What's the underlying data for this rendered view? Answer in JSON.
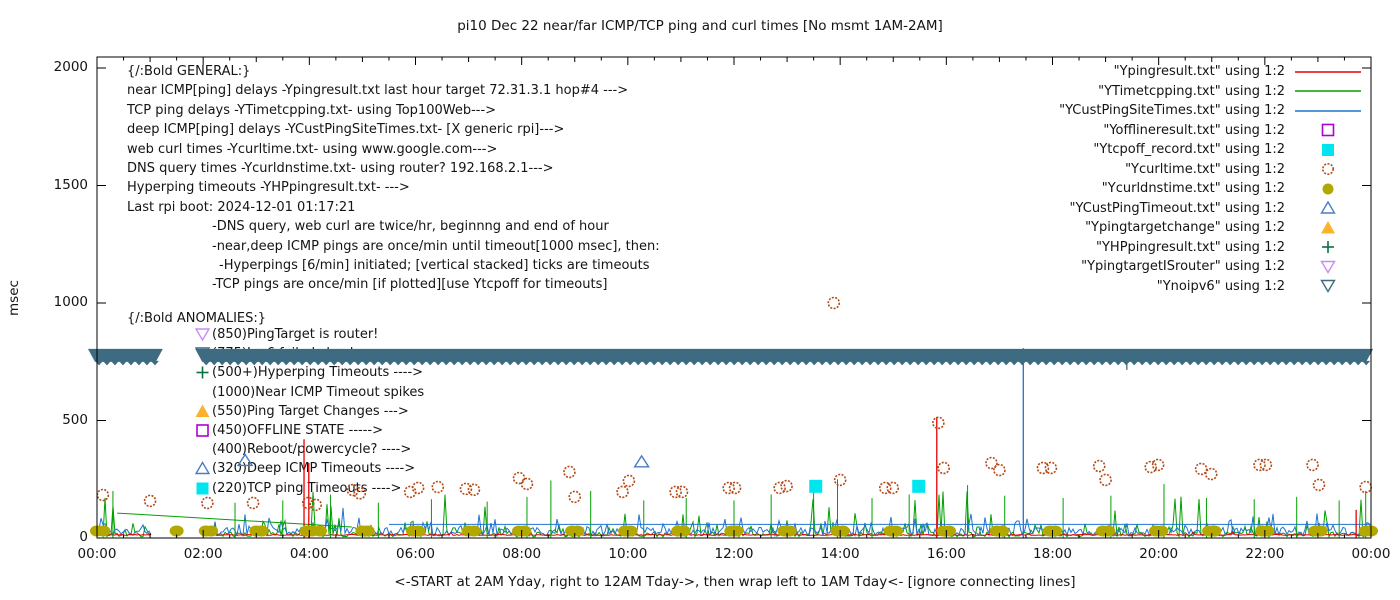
{
  "title": "pi10 Dec 22  near/far ICMP/TCP ping and curl times [No msmt 1AM-2AM]",
  "y_axis": {
    "label": "msec",
    "ticks": [
      0,
      500,
      1000,
      1500,
      2000
    ]
  },
  "x_axis": {
    "tick_labels": [
      "00:00",
      "02:00",
      "04:00",
      "06:00",
      "08:00",
      "10:00",
      "12:00",
      "14:00",
      "16:00",
      "18:00",
      "20:00",
      "22:00",
      "00:00"
    ],
    "caption": "<-START at 2AM Yday, right to 12AM Tday->, then wrap left to 1AM Tday<- [ignore connecting lines]"
  },
  "colors": {
    "red": "#e60000",
    "green": "#00a000",
    "blue": "#1f74d2",
    "magenta": "#b000d0",
    "cyan": "#00e5ee",
    "curl_circle": "#b44a17",
    "olive": "#b2a800",
    "tri_up_open": "#4a7ec2",
    "orange": "#fcb32c",
    "plus_green": "#0e6e44",
    "violet": "#c88bf2",
    "steel": "#3c6b82",
    "axis": "#000000"
  },
  "legend": [
    {
      "label": "\"Ypingresult.txt\" using 1:2",
      "sample": "line",
      "color": "#e60000"
    },
    {
      "label": "\"YTimetcpping.txt\" using 1:2",
      "sample": "line",
      "color": "#00a000"
    },
    {
      "label": "\"YCustPingSiteTimes.txt\" using 1:2",
      "sample": "line",
      "color": "#1f74d2"
    },
    {
      "label": "\"Yofflineresult.txt\" using 1:2",
      "sample": "square-open",
      "color": "#b000d0"
    },
    {
      "label": "\"Ytcpoff_record.txt\" using 1:2",
      "sample": "square-fill",
      "color": "#00e5ee"
    },
    {
      "label": "\"Ycurltime.txt\" using 1:2",
      "sample": "circle-open",
      "color": "#b44a17"
    },
    {
      "label": "\"Ycurldnstime.txt\" using 1:2",
      "sample": "circle-fill",
      "color": "#b2a800"
    },
    {
      "label": "\"YCustPingTimeout.txt\" using 1:2",
      "sample": "tri-up-open",
      "color": "#4a7ec2"
    },
    {
      "label": "\"Ypingtargetchange\" using 1:2",
      "sample": "tri-up-fill",
      "color": "#fcb32c"
    },
    {
      "label": "\"YHPpingresult.txt\" using 1:2",
      "sample": "plus",
      "color": "#0e6e44"
    },
    {
      "label": "\"YpingtargetISrouter\" using 1:2",
      "sample": "tri-down-open",
      "color": "#c88bf2"
    },
    {
      "label": "\"Ynoipv6\" using 1:2",
      "sample": "tri-down-open",
      "color": "#3c6b82"
    }
  ],
  "info_block": [
    {
      "text": "{/:Bold GENERAL:}",
      "x": 127
    },
    {
      "text": "near ICMP[ping] delays -Ypingresult.txt last hour target 72.31.3.1 hop#4 --->",
      "x": 127
    },
    {
      "text": "TCP ping delays -YTimetcpping.txt- using Top100Web--->",
      "x": 127
    },
    {
      "text": "deep ICMP[ping] delays -YCustPingSiteTimes.txt- [X generic rpi]--->",
      "x": 127
    },
    {
      "text": "web curl times -Ycurltime.txt- using www.google.com--->",
      "x": 127
    },
    {
      "text": "DNS query times -Ycurldnstime.txt- using router? 192.168.2.1--->",
      "x": 127
    },
    {
      "text": "Hyperping timeouts -YHPpingresult.txt- --->",
      "x": 127
    },
    {
      "text": "Last rpi boot: 2024-12-01 01:17:21",
      "x": 127
    },
    {
      "text": "-DNS query, web curl are twice/hr, beginnng and end of hour",
      "x": 212
    },
    {
      "text": "-near,deep ICMP pings are once/min until timeout[1000 msec], then:",
      "x": 212
    },
    {
      "text": "-Hyperpings [6/min] initiated; [vertical stacked] ticks are timeouts",
      "x": 219
    },
    {
      "text": "-TCP pings are once/min [if plotted][use Ytcpoff for timeouts]",
      "x": 212
    }
  ],
  "anomalies": {
    "header": "{/:Bold ANOMALIES:}",
    "lines": [
      {
        "marker": "tri-down-open",
        "color": "#c88bf2",
        "text": "(850)PingTarget is router!"
      },
      {
        "marker": "tri-down-open",
        "color": "#3c6b82",
        "text": "(775)Ipv6 failed check --->"
      },
      {
        "marker": "plus",
        "color": "#0e6e44",
        "text": "(500+)Hyperping Timeouts ---->"
      },
      {
        "marker": "none",
        "color": "#141414",
        "text": "(1000)Near ICMP Timeout spikes"
      },
      {
        "marker": "tri-up-fill",
        "color": "#fcb32c",
        "text": "(550)Ping Target Changes --->"
      },
      {
        "marker": "square-open",
        "color": "#b000d0",
        "text": "(450)OFFLINE STATE ----->"
      },
      {
        "marker": "none",
        "color": "#141414",
        "text": "(400)Reboot/powercycle? ---->"
      },
      {
        "marker": "tri-up-open",
        "color": "#4a7ec2",
        "text": "(320)Deep ICMP Timeouts ---->"
      },
      {
        "marker": "square-fill",
        "color": "#00e5ee",
        "text": "(220)TCP ping Timeouts ---->"
      }
    ]
  },
  "chart_data": {
    "type": "line",
    "title": "pi10 Dec 22  near/far ICMP/TCP ping and curl times [No msmt 1AM-2AM]",
    "xlabel": "<-START at 2AM Yday, right to 12AM Tday->, then wrap left to 1AM Tday<- [ignore connecting lines]",
    "ylabel": "msec",
    "xlim_hours": [
      0,
      24
    ],
    "ylim": [
      0,
      2045
    ],
    "grid": false,
    "legend_position": "top-right-inside",
    "no_measurement_gap_hours": [
      1.03,
      2.17
    ],
    "series": [
      {
        "name": "Ypingresult.txt",
        "style": "line",
        "color": "#e60000",
        "baseline_msec": 13,
        "spikes": [
          [
            3.9,
            420
          ],
          [
            3.99,
            320
          ],
          [
            15.82,
            515
          ],
          [
            23.72,
            120
          ]
        ]
      },
      {
        "name": "YTimetcpping.txt",
        "style": "line",
        "color": "#00a000",
        "noise_range_msec": [
          5,
          260
        ],
        "spikes": [
          [
            0.3,
            200
          ],
          [
            2.6,
            150
          ],
          [
            3.5,
            160
          ],
          [
            4.4,
            185
          ],
          [
            5.3,
            150
          ],
          [
            6.3,
            165
          ],
          [
            7.35,
            155
          ],
          [
            8.1,
            175
          ],
          [
            8.55,
            245
          ],
          [
            9.3,
            200
          ],
          [
            10.3,
            160
          ],
          [
            11.1,
            170
          ],
          [
            12.0,
            160
          ],
          [
            12.7,
            185
          ],
          [
            13.5,
            205
          ],
          [
            13.95,
            250
          ],
          [
            14.6,
            170
          ],
          [
            15.3,
            185
          ],
          [
            16.4,
            225
          ],
          [
            17.1,
            180
          ],
          [
            18.2,
            170
          ],
          [
            19.1,
            180
          ],
          [
            20.1,
            230
          ],
          [
            20.9,
            170
          ],
          [
            21.8,
            165
          ],
          [
            22.6,
            175
          ],
          [
            23.4,
            160
          ],
          [
            23.9,
            200
          ]
        ],
        "connecting_line": [
          [
            0.38,
            106
          ],
          [
            4.8,
            47
          ]
        ]
      },
      {
        "name": "YCustPingSiteTimes.txt",
        "style": "line",
        "color": "#1f74d2",
        "noise_range_msec": [
          8,
          135
        ],
        "flat_segment": {
          "from_hour": 5.5,
          "to_hour": 24,
          "msec": 58
        },
        "spikes": [
          [
            17.45,
            808
          ]
        ]
      },
      {
        "name": "Yofflineresult.txt",
        "style": "square-open",
        "color": "#b000d0",
        "points": []
      },
      {
        "name": "Ytcpoff_record.txt",
        "style": "square-fill",
        "color": "#00e5ee",
        "points": [
          [
            13.54,
            220
          ],
          [
            15.48,
            220
          ]
        ]
      },
      {
        "name": "Ycurltime.txt",
        "style": "circle-open",
        "color": "#b44a17",
        "points": [
          [
            0.11,
            183
          ],
          [
            1.0,
            158
          ],
          [
            2.08,
            149
          ],
          [
            2.94,
            149
          ],
          [
            3.98,
            149
          ],
          [
            4.12,
            141
          ],
          [
            4.82,
            204
          ],
          [
            4.95,
            190
          ],
          [
            5.9,
            196
          ],
          [
            6.05,
            213
          ],
          [
            6.42,
            217
          ],
          [
            6.95,
            209
          ],
          [
            7.1,
            205
          ],
          [
            7.95,
            255
          ],
          [
            8.1,
            230
          ],
          [
            8.9,
            281
          ],
          [
            9.0,
            175
          ],
          [
            9.9,
            196
          ],
          [
            10.02,
            243
          ],
          [
            10.9,
            196
          ],
          [
            11.02,
            196
          ],
          [
            11.9,
            213
          ],
          [
            12.02,
            213
          ],
          [
            12.86,
            213
          ],
          [
            12.99,
            221
          ],
          [
            13.88,
            1000
          ],
          [
            14.0,
            247
          ],
          [
            14.85,
            213
          ],
          [
            14.99,
            213
          ],
          [
            15.85,
            490
          ],
          [
            15.95,
            298
          ],
          [
            16.85,
            319
          ],
          [
            17.0,
            289
          ],
          [
            17.82,
            298
          ],
          [
            17.97,
            298
          ],
          [
            18.88,
            306
          ],
          [
            19.0,
            247
          ],
          [
            19.85,
            302
          ],
          [
            19.99,
            311
          ],
          [
            20.8,
            294
          ],
          [
            20.99,
            272
          ],
          [
            21.9,
            311
          ],
          [
            22.02,
            311
          ],
          [
            22.9,
            311
          ],
          [
            23.02,
            226
          ],
          [
            23.9,
            217
          ]
        ]
      },
      {
        "name": "Ycurldnstime.txt",
        "style": "circle-fill",
        "color": "#b2a800",
        "msec": 30,
        "hours": [
          0.0,
          0.12,
          1.5,
          2.05,
          2.15,
          3.0,
          3.1,
          3.95,
          4.05,
          4.2,
          5.0,
          5.1,
          5.95,
          6.05,
          7.0,
          7.1,
          7.95,
          8.05,
          8.95,
          9.05,
          9.95,
          10.05,
          10.95,
          11.05,
          11.95,
          12.05,
          12.95,
          13.05,
          13.95,
          14.05,
          14.95,
          15.05,
          15.95,
          16.05,
          16.95,
          17.05,
          17.95,
          18.05,
          18.95,
          19.05,
          19.95,
          20.05,
          20.95,
          21.05,
          21.95,
          22.05,
          22.95,
          23.05,
          23.9,
          24.0
        ]
      },
      {
        "name": "YCustPingTimeout.txt",
        "style": "tri-up-open",
        "color": "#4a7ec2",
        "points": [
          [
            2.79,
            330
          ],
          [
            10.26,
            324
          ]
        ]
      },
      {
        "name": "Ypingtargetchange",
        "style": "tri-up-fill",
        "color": "#fcb32c",
        "points": []
      },
      {
        "name": "YHPpingresult.txt",
        "style": "plus",
        "color": "#0e6e44",
        "points": []
      },
      {
        "name": "YpingtargetISrouter",
        "style": "tri-down-open",
        "color": "#c88bf2",
        "points": []
      },
      {
        "name": "Ynoipv6",
        "style": "tri-down-open-band",
        "color": "#3c6b82",
        "msec": 775,
        "band_segments_hours": [
          [
            -0.17,
            1.24
          ],
          [
            1.85,
            24.04
          ]
        ],
        "under_band_ticks_hours": [
          19.4
        ]
      }
    ]
  }
}
